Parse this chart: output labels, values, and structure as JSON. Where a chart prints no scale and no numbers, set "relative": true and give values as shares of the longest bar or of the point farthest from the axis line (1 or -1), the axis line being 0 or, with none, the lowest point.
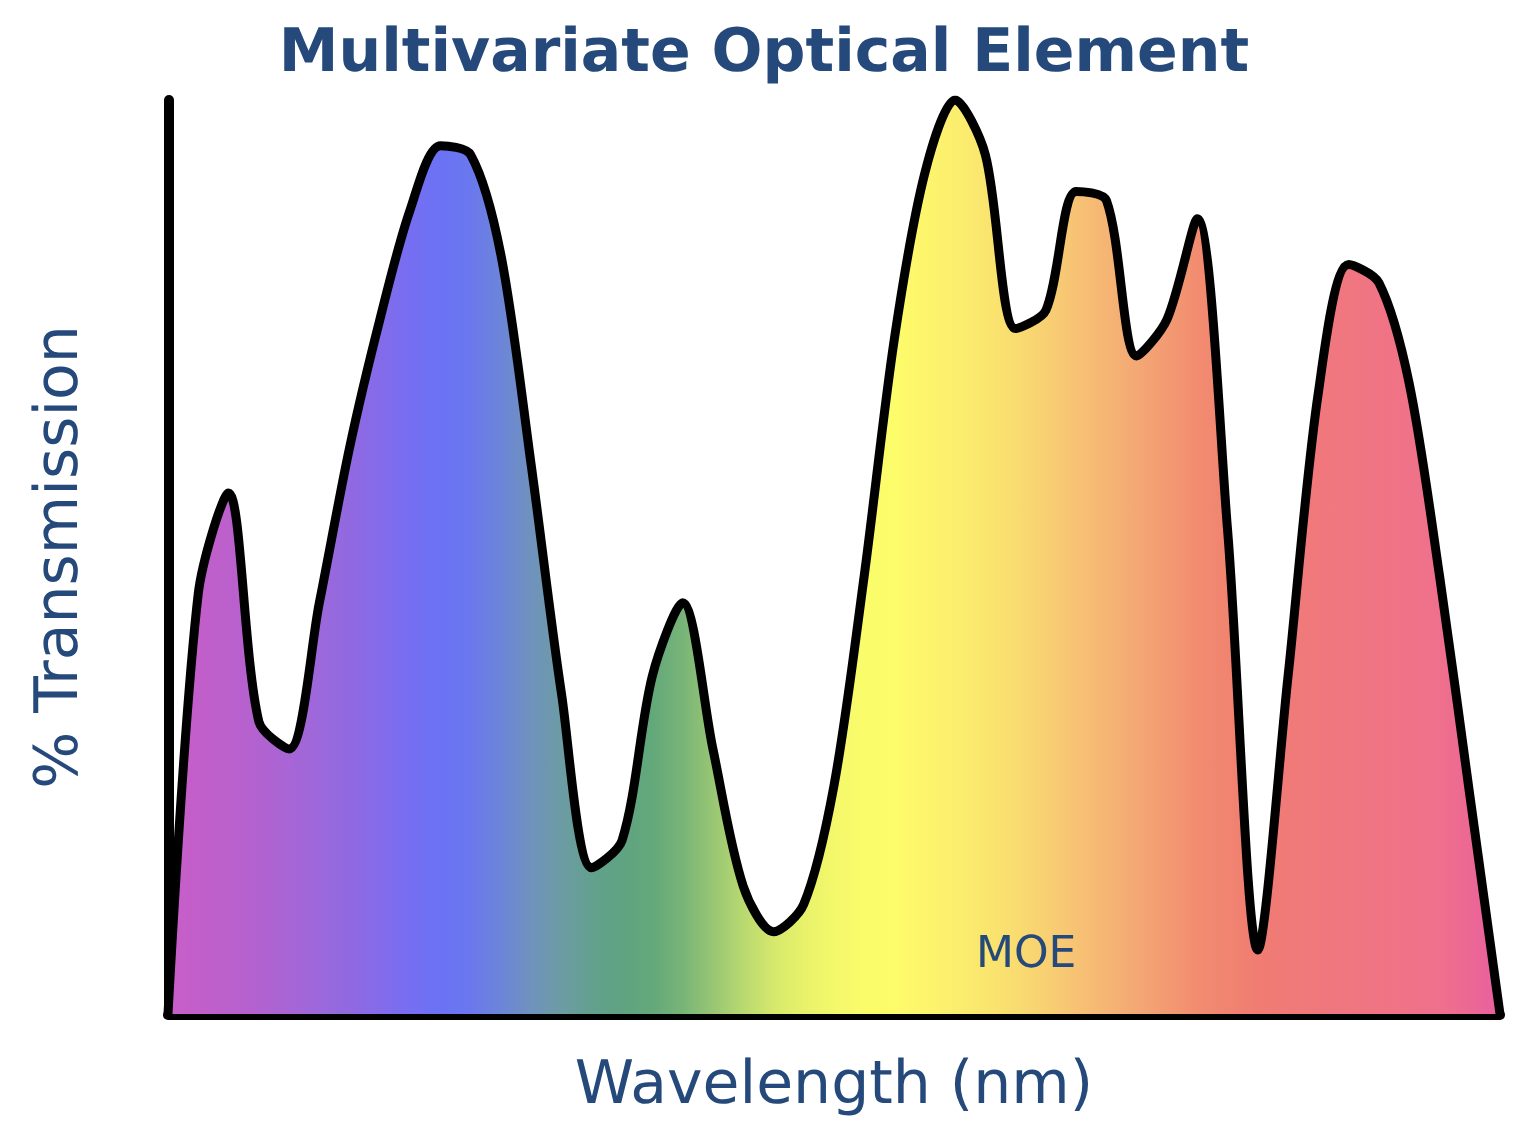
{
  "chart_data": {
    "type": "area",
    "title": "Multivariate Optical Element",
    "xlabel": "Wavelength (nm)",
    "ylabel": "% Transmission",
    "annotations": [
      "MOE"
    ],
    "relative": true,
    "grid": false,
    "marker": "none",
    "line_style": "solid",
    "categories": [
      null,
      null,
      null,
      null,
      null,
      null,
      null,
      null,
      null,
      null,
      null,
      null,
      null,
      null,
      null,
      null,
      null,
      null,
      null,
      null,
      null,
      null,
      null,
      null,
      null,
      null,
      null,
      null,
      null,
      null,
      null,
      null,
      null,
      null,
      null,
      null,
      null,
      null,
      null,
      null,
      null,
      null,
      null,
      null,
      null
    ],
    "series": [
      {
        "color": "#000000",
        "values": [
          0,
          0.46,
          0.57,
          0.32,
          0.29,
          0.45,
          0.62,
          0.76,
          0.88,
          0.95,
          0.94,
          0.83,
          0.6,
          0.35,
          0.16,
          0.19,
          0.37,
          0.45,
          0.29,
          0.14,
          0.09,
          0.12,
          0.25,
          0.48,
          0.74,
          0.92,
          1.0,
          0.94,
          0.75,
          0.77,
          0.9,
          0.89,
          0.72,
          0.76,
          0.87,
          0.53,
          0.07,
          0.37,
          0.68,
          0.82,
          0.8,
          0.69,
          0.48,
          0.24,
          0
        ],
        "colors": [
          "#c85ec8",
          "#c25fca",
          "#bb60cc",
          "#b262d0",
          "#a865d5",
          "#9c68db",
          "#9069e0",
          "#846bea",
          "#766ef2",
          "#6b72f5",
          "#6a78ee",
          "#6c85d8",
          "#6f92bd",
          "#6c9ca4",
          "#63a08e",
          "#5fa382",
          "#63a87a",
          "#78b478",
          "#98c674",
          "#b8d970",
          "#d5e86c",
          "#e8f26a",
          "#f3f86a",
          "#fafc6a",
          "#fdfc6a",
          "#fdf56c",
          "#fbee6e",
          "#fae66e",
          "#f9dc70",
          "#f8d072",
          "#f7c274",
          "#f5b574",
          "#f4a874",
          "#f39a72",
          "#f28c70",
          "#f18470",
          "#f07c72",
          "#f07a78",
          "#f0787c",
          "#f07680",
          "#f07484",
          "#f07288",
          "#ef708c",
          "#ec6894",
          "#e860a0"
        ]
      }
    ]
  }
}
